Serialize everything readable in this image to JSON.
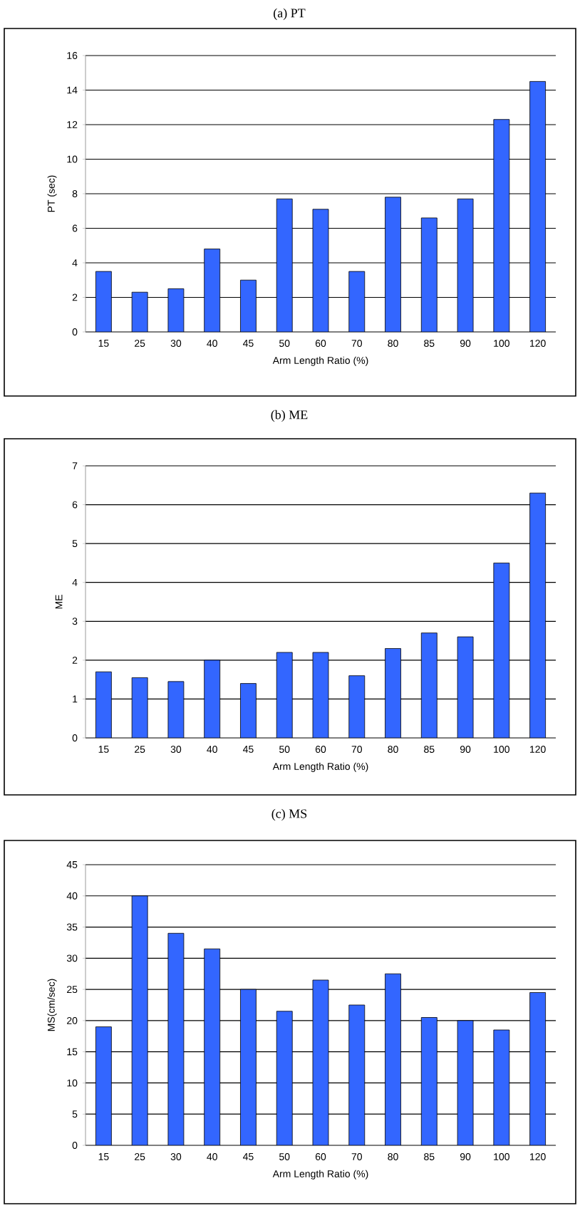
{
  "chart_data": [
    {
      "type": "bar",
      "title": "(a) PT",
      "xlabel": "Arm Length Ratio (%)",
      "ylabel": "PT (sec)",
      "categories": [
        "15",
        "25",
        "30",
        "40",
        "45",
        "50",
        "60",
        "70",
        "80",
        "85",
        "90",
        "100",
        "120"
      ],
      "values": [
        3.5,
        2.3,
        2.5,
        4.8,
        3.0,
        7.7,
        7.1,
        3.5,
        7.8,
        6.6,
        7.7,
        12.3,
        14.5
      ],
      "color": "#3366ff",
      "ylim": [
        0,
        16
      ],
      "yticks": [
        0,
        2,
        4,
        6,
        8,
        10,
        12,
        14,
        16
      ],
      "grid": "y"
    },
    {
      "type": "bar",
      "title": "(b) ME",
      "xlabel": "Arm Length Ratio (%)",
      "ylabel": "ME",
      "categories": [
        "15",
        "25",
        "30",
        "40",
        "45",
        "50",
        "60",
        "70",
        "80",
        "85",
        "90",
        "100",
        "120"
      ],
      "values": [
        1.7,
        1.55,
        1.45,
        2.0,
        1.4,
        2.2,
        2.2,
        1.6,
        2.3,
        2.7,
        2.6,
        4.5,
        6.3
      ],
      "color": "#3366ff",
      "ylim": [
        0,
        7
      ],
      "yticks": [
        0,
        1,
        2,
        3,
        4,
        5,
        6,
        7
      ],
      "grid": "y"
    },
    {
      "type": "bar",
      "title": "(c) MS",
      "xlabel": "Arm Length Ratio (%)",
      "ylabel": "MS(cm/sec)",
      "categories": [
        "15",
        "25",
        "30",
        "40",
        "45",
        "50",
        "60",
        "70",
        "80",
        "85",
        "90",
        "100",
        "120"
      ],
      "values": [
        19,
        40,
        34,
        31.5,
        25,
        21.5,
        26.5,
        22.5,
        27.5,
        20.5,
        20,
        18.5,
        24.5
      ],
      "color": "#3366ff",
      "ylim": [
        0,
        45
      ],
      "yticks": [
        0,
        5,
        10,
        15,
        20,
        25,
        30,
        35,
        40,
        45
      ],
      "grid": "y"
    }
  ]
}
